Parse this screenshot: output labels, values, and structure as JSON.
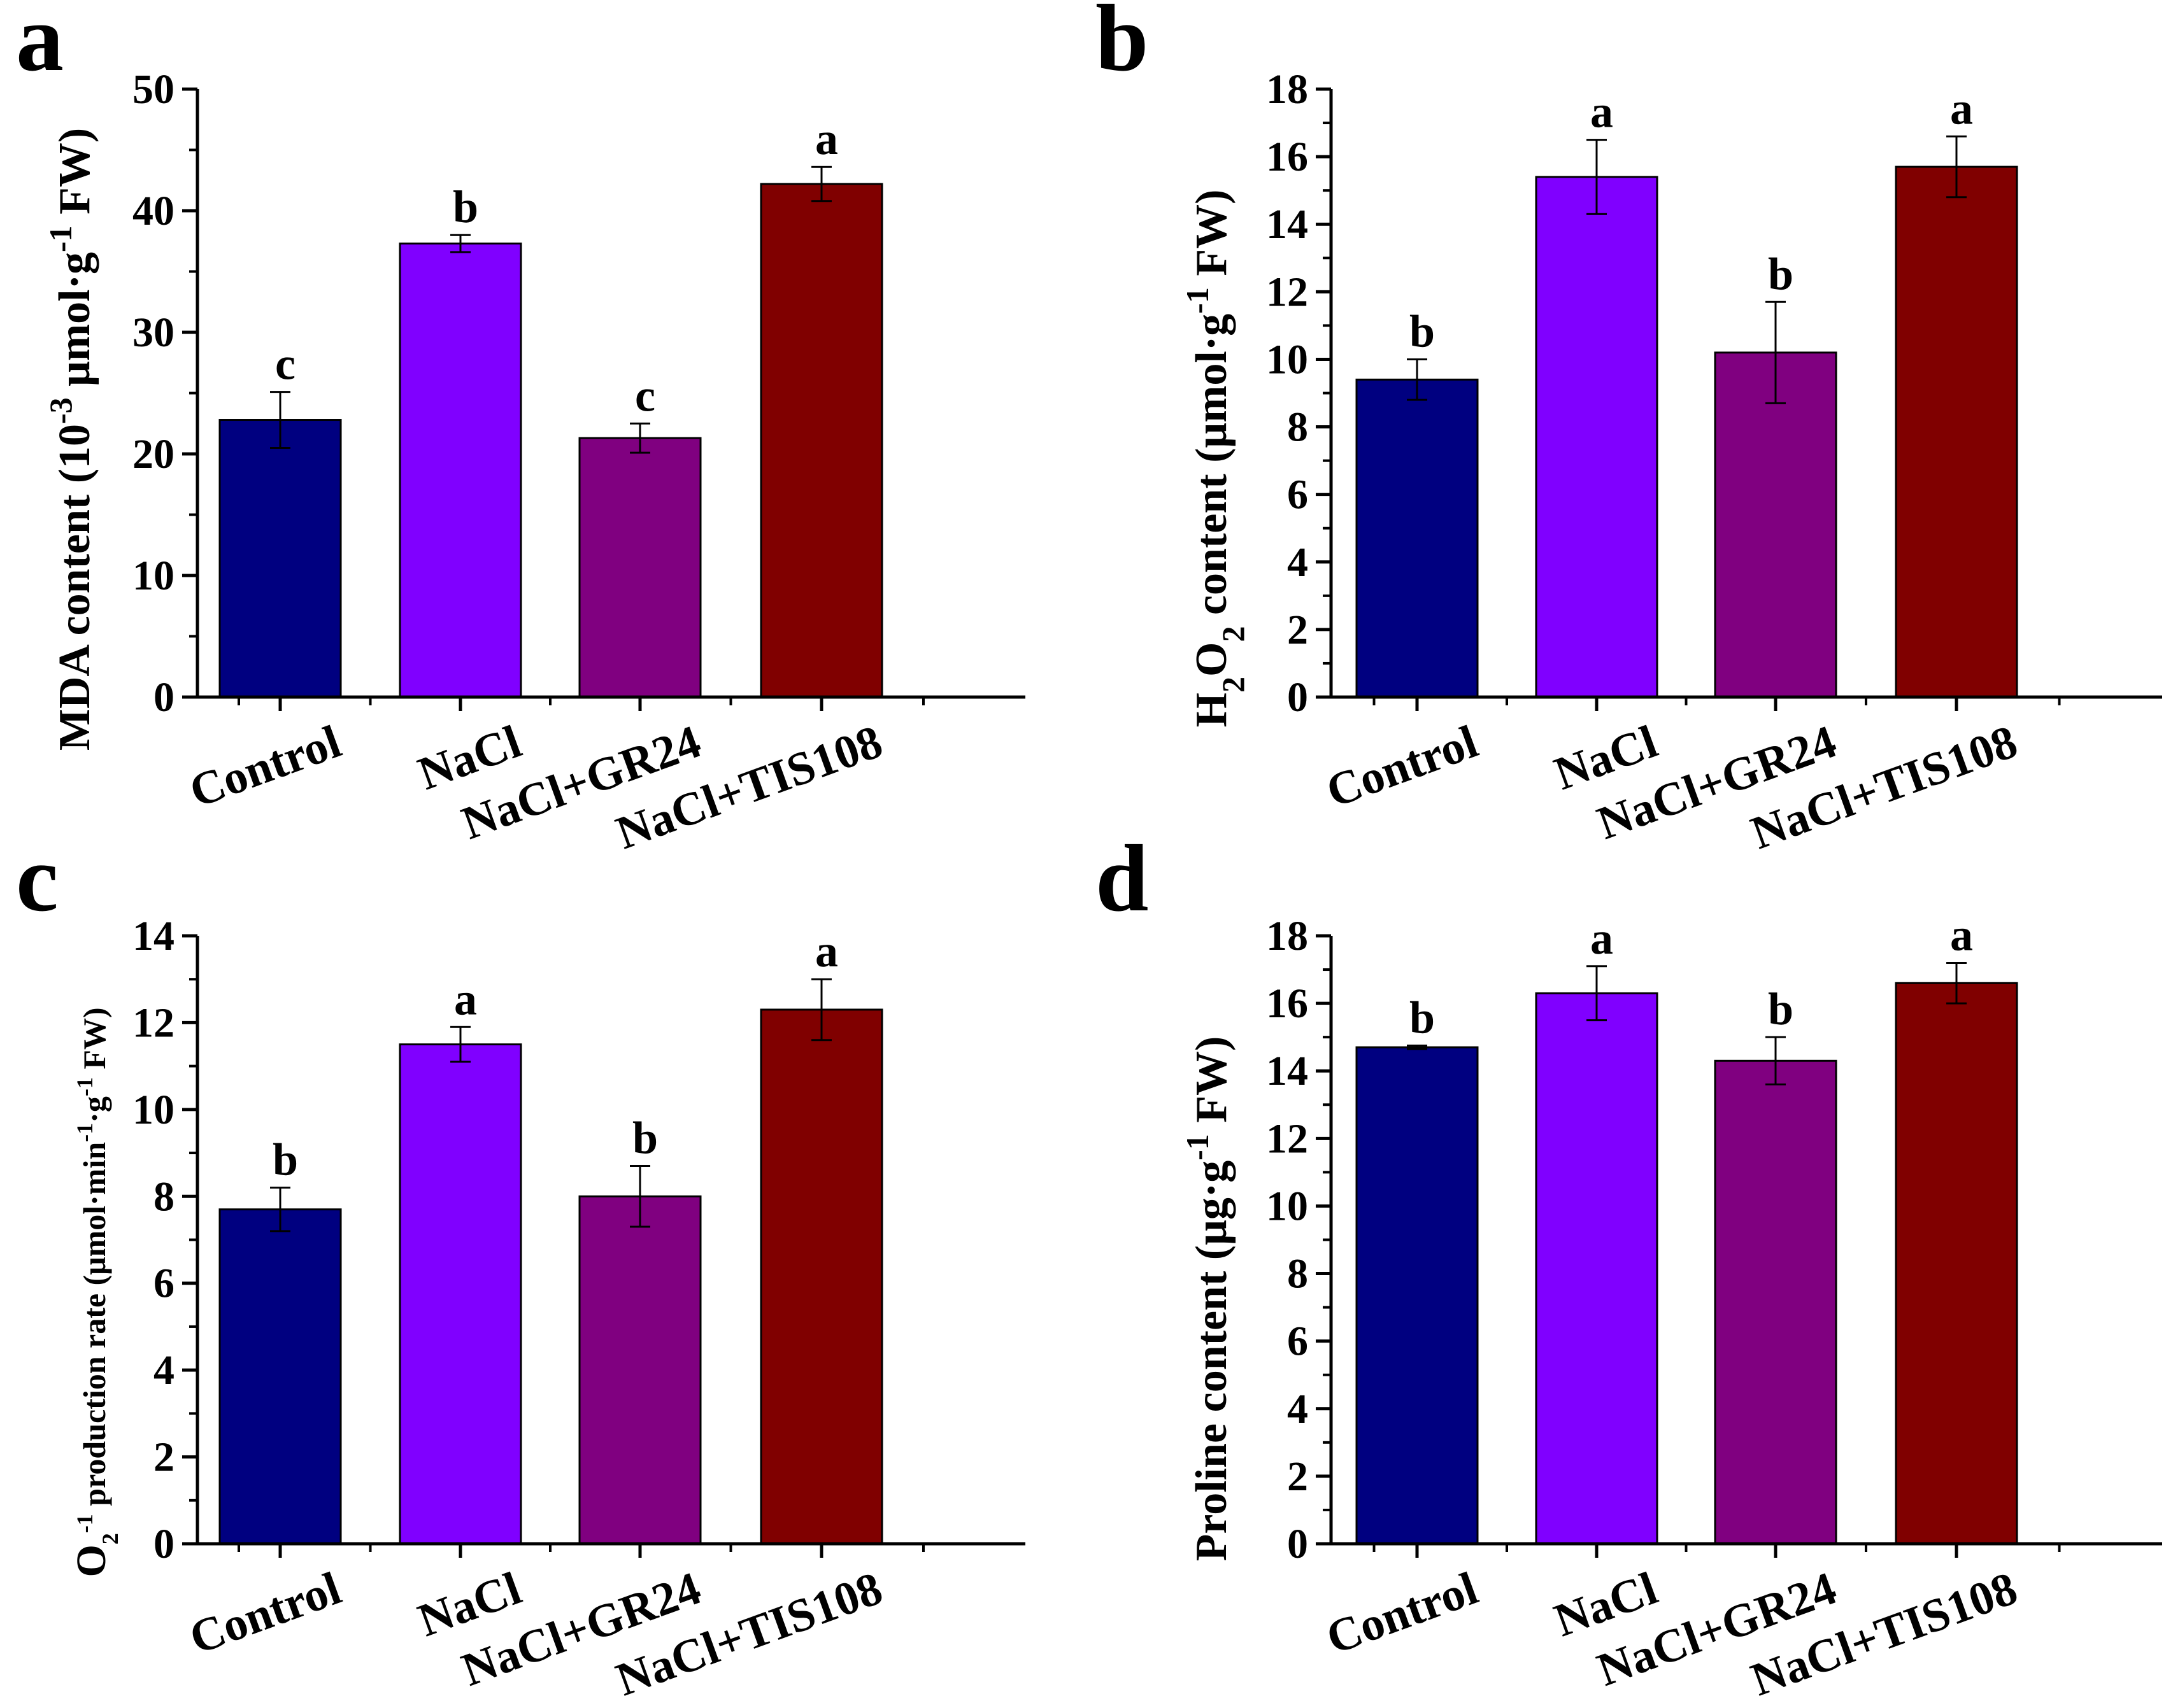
{
  "chart_data": [
    {
      "panel": "a",
      "type": "bar",
      "categories": [
        "Control",
        "NaCl",
        "NaCl+GR24",
        "NaCl+TIS108"
      ],
      "values": [
        22.8,
        37.3,
        21.3,
        42.2
      ],
      "errors": [
        2.3,
        0.7,
        1.2,
        1.4
      ],
      "letters": [
        "c",
        "b",
        "c",
        "a"
      ],
      "colors": [
        "#000080",
        "#8000ff",
        "#800080",
        "#800000"
      ],
      "ylim": [
        0,
        50
      ],
      "yticks": [
        0,
        10,
        20,
        30,
        40,
        50
      ],
      "ylabel": {
        "pre": "MDA content (10",
        "sup1": "-3",
        "mid": " μmol·g",
        "sup2": "-1",
        "post": " FW)"
      }
    },
    {
      "panel": "b",
      "type": "bar",
      "categories": [
        "Control",
        "NaCl",
        "NaCl+GR24",
        "NaCl+TIS108"
      ],
      "values": [
        9.4,
        15.4,
        10.2,
        15.7
      ],
      "errors": [
        0.6,
        1.1,
        1.5,
        0.9
      ],
      "letters": [
        "b",
        "a",
        "b",
        "a"
      ],
      "colors": [
        "#000080",
        "#8000ff",
        "#800080",
        "#800000"
      ],
      "ylim": [
        0,
        18
      ],
      "yticks": [
        0,
        2,
        4,
        6,
        8,
        10,
        12,
        14,
        16,
        18
      ],
      "ylabel": {
        "pre": "H",
        "sub1": "2",
        "mid1": "O",
        "sub2": "2",
        "mid2": " content (μmol·g",
        "sup": "-1",
        "post": " FW)"
      }
    },
    {
      "panel": "c",
      "type": "bar",
      "categories": [
        "Control",
        "NaCl",
        "NaCl+GR24",
        "NaCl+TIS108"
      ],
      "values": [
        7.7,
        11.5,
        8.0,
        12.3
      ],
      "errors": [
        0.5,
        0.4,
        0.7,
        0.7
      ],
      "letters": [
        "b",
        "a",
        "b",
        "a"
      ],
      "colors": [
        "#000080",
        "#8000ff",
        "#800080",
        "#800000"
      ],
      "ylim": [
        0,
        14
      ],
      "yticks": [
        0,
        2,
        4,
        6,
        8,
        10,
        12,
        14
      ],
      "ylabel": {
        "pre": "O",
        "sub": "2",
        "sup1": "-1",
        "mid": " production rate (μmol·min",
        "sup2": "-1",
        "mid2": "·g",
        "sup3": "-1",
        "post": " FW)"
      }
    },
    {
      "panel": "d",
      "type": "bar",
      "categories": [
        "Control",
        "NaCl",
        "NaCl+GR24",
        "NaCl+TIS108"
      ],
      "values": [
        14.7,
        16.3,
        14.3,
        16.6
      ],
      "errors": [
        0.05,
        0.8,
        0.7,
        0.6
      ],
      "letters": [
        "b",
        "a",
        "b",
        "a"
      ],
      "colors": [
        "#000080",
        "#8000ff",
        "#800080",
        "#800000"
      ],
      "ylim": [
        0,
        18
      ],
      "yticks": [
        0,
        2,
        4,
        6,
        8,
        10,
        12,
        14,
        16,
        18
      ],
      "ylabel": {
        "pre": "Proline content (μg·g",
        "sup": "-1",
        "post": " FW)"
      }
    }
  ]
}
